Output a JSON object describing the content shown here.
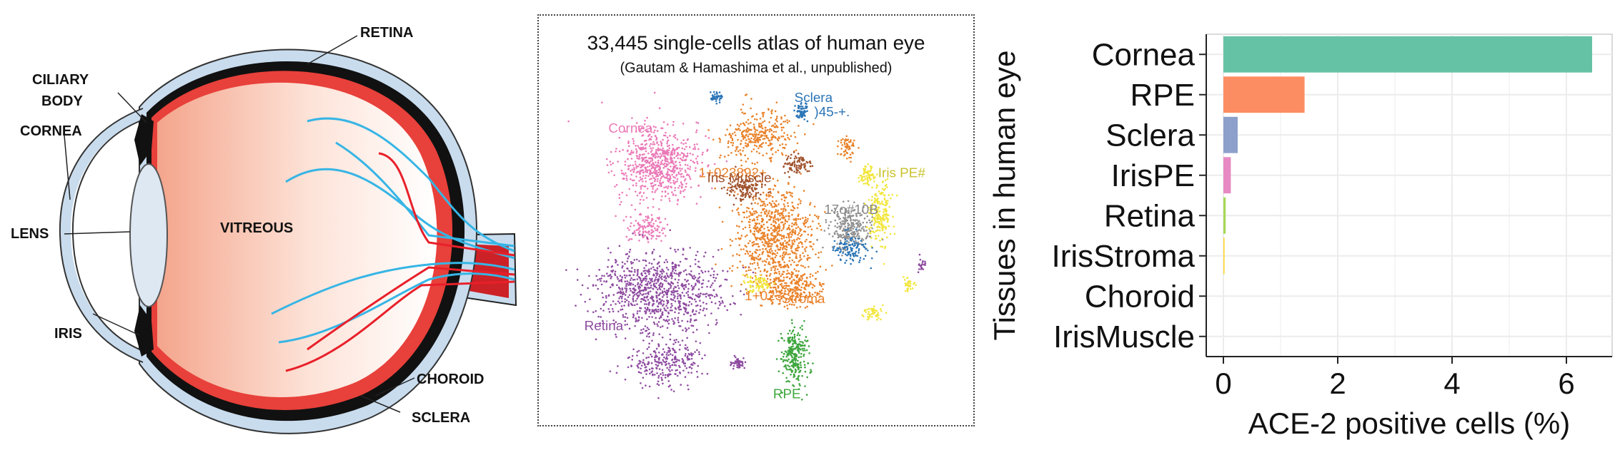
{
  "eye_diagram": {
    "labels": {
      "retina": "RETINA",
      "ciliary_body_1": "CILIARY",
      "ciliary_body_2": "BODY",
      "cornea": "CORNEA",
      "lens": "LENS",
      "vitreous": "VITREOUS",
      "iris": "IRIS",
      "choroid": "CHOROID",
      "sclera": "SCLERA"
    },
    "colors": {
      "sclera": "#c9dcee",
      "retina": "#e8403a",
      "vitreous": "#f6b7a3",
      "lens": "#dde8f3",
      "nerve_blue": "#36b5e5",
      "vessel_red": "#e8202a",
      "optic_nerve": "#cc2127"
    }
  },
  "tsne": {
    "title": "33,445 single-cells atlas of human eye",
    "subtitle": "(Gautam & Hamashima et al., unpublished)",
    "clusters": [
      {
        "label": "Cornea",
        "color": "#ea7ab8"
      },
      {
        "label": "Sclera",
        "color": "#2a74b6"
      },
      {
        "label": ")45-+.",
        "color": "#2a74b6"
      },
      {
        "label": "1+023892+",
        "color": "#e9822a"
      },
      {
        "label": "Iris Muscle",
        "color": "#a0522d"
      },
      {
        "label": "Iris PE#",
        "color": "#c9c22a"
      },
      {
        "label": "17o#10B",
        "color": "#888888"
      },
      {
        "label": "Retina",
        "color": "#8e4ba0"
      },
      {
        "label": "1+023",
        "color": "#e9822a"
      },
      {
        "label": "Stroma",
        "color": "#e9822a"
      },
      {
        "label": "RPE",
        "color": "#3ea63e"
      }
    ],
    "extra_colors": {
      "yellow": "#f2e63a",
      "grey": "#909090"
    }
  },
  "chart_data": {
    "type": "bar",
    "orientation": "horizontal",
    "categories": [
      "Cornea",
      "RPE",
      "Sclera",
      "IrisPE",
      "Retina",
      "IrisStroma",
      "Choroid",
      "IrisMuscle"
    ],
    "values": [
      6.45,
      1.42,
      0.25,
      0.13,
      0.04,
      0.02,
      0.0,
      0.0
    ],
    "colors": [
      "#66c2a5",
      "#fc8d62",
      "#8da0cb",
      "#e78ac3",
      "#a6d854",
      "#ffd92f",
      "#e5c494",
      "#b3b3b3"
    ],
    "xlabel": "ACE-2 positive cells (%)",
    "ylabel": "Tissues in human eye",
    "x_ticks": [
      0,
      2,
      4,
      6
    ],
    "xlim": [
      -0.3,
      6.8
    ],
    "grid": true
  }
}
